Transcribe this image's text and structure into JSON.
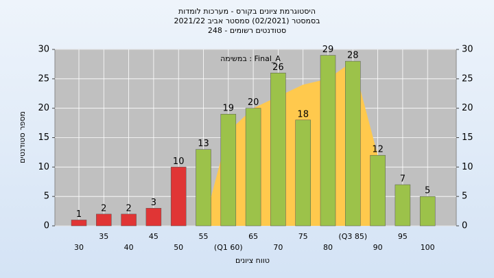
{
  "chart_data": {
    "type": "bar",
    "title": "היסטוגרמת ציונים בקורס - מערכות לומדות",
    "subtitle": "בסמסטר (02/2021) סמסטר אביב 2021/22",
    "subtitle2": "סטודנטים רשומים - 248",
    "annotation": "במשימה : Final_A",
    "x_label": "טווח ציונים",
    "y_label": "מספר סטודנטים",
    "categories": [
      "30",
      "35",
      "40",
      "45",
      "50",
      "55",
      "(Q1 60)",
      "65",
      "70",
      "75",
      "80",
      "(Q3 85)",
      "90",
      "95",
      "100"
    ],
    "values": [
      1,
      2,
      2,
      3,
      10,
      13,
      19,
      20,
      26,
      18,
      29,
      28,
      12,
      7,
      5
    ],
    "colors": [
      "#e03535",
      "#e03535",
      "#e03535",
      "#e03535",
      "#e03535",
      "#9cc24a",
      "#9cc24a",
      "#9cc24a",
      "#9cc24a",
      "#9cc24a",
      "#9cc24a",
      "#9cc24a",
      "#9cc24a",
      "#9cc24a",
      "#9cc24a"
    ],
    "area": {
      "color": "#ffc94d",
      "values": [
        null,
        null,
        null,
        null,
        null,
        0,
        16,
        20,
        22,
        24,
        25,
        28,
        12,
        null,
        null
      ]
    },
    "ylim": [
      0,
      30
    ],
    "yticks": [
      0,
      5,
      10,
      15,
      20,
      25,
      30
    ],
    "y2lim": [
      0,
      30
    ],
    "y2ticks": [
      0,
      5,
      10,
      15,
      20,
      25,
      30
    ],
    "grid": true
  }
}
